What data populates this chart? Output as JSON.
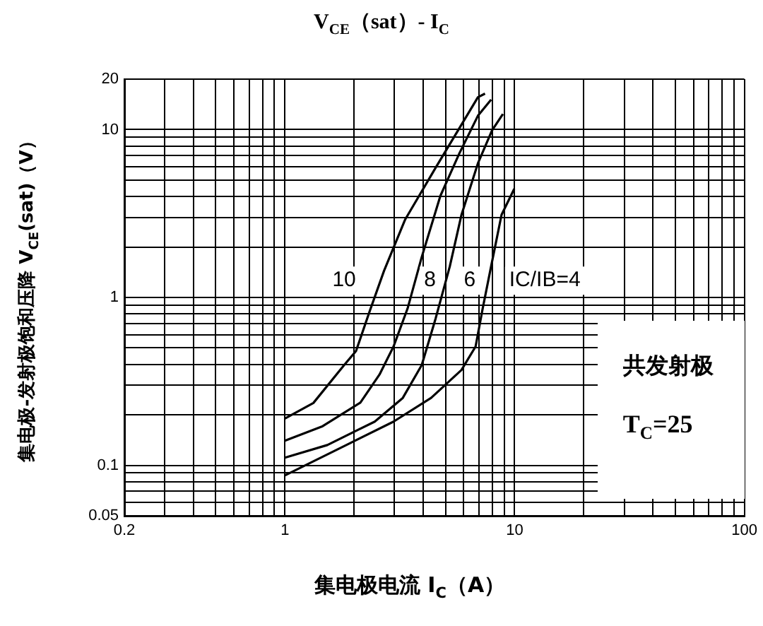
{
  "chart_data": {
    "type": "line",
    "title": "V$_{CE}$（sat）- I$_{C}$",
    "xlabel": "集电极电流 I$_{C}$（A）",
    "ylabel": "集电极-发射极饱和压降 V$_{CE}$(sat)（V）",
    "log": "xy",
    "grid": true,
    "legend": false,
    "marker": "none",
    "line_style": "solid",
    "xlim": [
      0.2,
      100
    ],
    "xticks": [
      0.2,
      {
        "value": 0.3,
        "label": null
      },
      {
        "value": 0.4,
        "label": null
      },
      {
        "value": 0.5,
        "label": null
      },
      {
        "value": 0.6,
        "label": null
      },
      {
        "value": 0.7,
        "label": null
      },
      {
        "value": 0.8,
        "label": null
      },
      {
        "value": 0.9,
        "label": null
      },
      1,
      {
        "value": 2,
        "label": null
      },
      {
        "value": 3,
        "label": null
      },
      {
        "value": 4,
        "label": null
      },
      {
        "value": 5,
        "label": null
      },
      {
        "value": 6,
        "label": null
      },
      {
        "value": 7,
        "label": null
      },
      {
        "value": 8,
        "label": null
      },
      {
        "value": 9,
        "label": null
      },
      10,
      {
        "value": 20,
        "label": null
      },
      {
        "value": 30,
        "label": null
      },
      {
        "value": 40,
        "label": null
      },
      {
        "value": 50,
        "label": null
      },
      {
        "value": 60,
        "label": null
      },
      {
        "value": 70,
        "label": null
      },
      {
        "value": 80,
        "label": null
      },
      {
        "value": 90,
        "label": null
      },
      100
    ],
    "ylim": [
      0.05,
      20
    ],
    "yticks": [
      0.05,
      {
        "value": 0.06,
        "label": null
      },
      {
        "value": 0.07,
        "label": null
      },
      {
        "value": 0.08,
        "label": null
      },
      {
        "value": 0.09,
        "label": null
      },
      0.1,
      {
        "value": 0.2,
        "label": null
      },
      {
        "value": 0.3,
        "label": null
      },
      {
        "value": 0.4,
        "label": null
      },
      {
        "value": 0.5,
        "label": null
      },
      {
        "value": 0.6,
        "label": null
      },
      {
        "value": 0.7,
        "label": null
      },
      {
        "value": 0.8,
        "label": null
      },
      {
        "value": 0.9,
        "label": null
      },
      1,
      {
        "value": 2,
        "label": null
      },
      {
        "value": 3,
        "label": null
      },
      {
        "value": 4,
        "label": null
      },
      {
        "value": 5,
        "label": null
      },
      {
        "value": 6,
        "label": null
      },
      {
        "value": 7,
        "label": null
      },
      {
        "value": 8,
        "label": null
      },
      {
        "value": 9,
        "label": null
      },
      10,
      20
    ],
    "series": [
      {
        "color": "#000000",
        "x": [
          1,
          1.33,
          1.81,
          2.04,
          2.34,
          2.7,
          2.97,
          3.34,
          4.53,
          6.01,
          6.92,
          7.43
        ],
        "values": [
          0.19,
          0.235,
          0.395,
          0.48,
          0.83,
          1.44,
          1.98,
          2.92,
          5.93,
          11.3,
          15.6,
          16.4
        ]
      },
      {
        "color": "#000000",
        "x": [
          1,
          1.46,
          2.13,
          2.58,
          2.97,
          3.42,
          3.94,
          4.75,
          5.74,
          6.92,
          7.9
        ],
        "values": [
          0.14,
          0.171,
          0.236,
          0.347,
          0.51,
          0.86,
          1.74,
          4.03,
          7.2,
          12.1,
          15.1
        ]
      },
      {
        "color": "#000000",
        "x": [
          1,
          1.53,
          2.46,
          3.26,
          3.94,
          4.53,
          5.22,
          5.87,
          6.92,
          7.97,
          8.89
        ],
        "values": [
          0.111,
          0.132,
          0.182,
          0.252,
          0.395,
          0.75,
          1.53,
          3.11,
          6.3,
          9.9,
          12.4
        ]
      },
      {
        "color": "#000000",
        "x": [
          1,
          1.85,
          2.97,
          4.33,
          5.87,
          6.76,
          7.26,
          7.97,
          8.77,
          9.96
        ],
        "values": [
          0.087,
          0.132,
          0.182,
          0.252,
          0.37,
          0.51,
          0.86,
          1.63,
          3.11,
          4.44
        ]
      }
    ],
    "annotations": [
      {
        "text": "10",
        "x": 1.81,
        "y": 1.26
      },
      {
        "text": "8",
        "x": 4.28,
        "y": 1.26
      },
      {
        "text": "6",
        "x": 6.37,
        "y": 1.26
      },
      "IC/IB=4",
      "共发射极",
      "T$_{C}$=25"
    ]
  }
}
